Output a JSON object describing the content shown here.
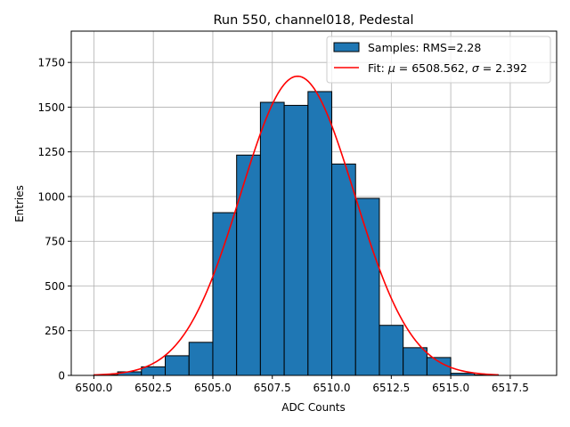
{
  "chart_data": {
    "type": "histogram",
    "title": "Run 550, channel018, Pedestal",
    "xlabel": "ADC Counts",
    "ylabel": "Entries",
    "xlim": [
      6499.05,
      6519.45
    ],
    "ylim": [
      0,
      1925
    ],
    "x_ticks": [
      6500.0,
      6502.5,
      6505.0,
      6507.5,
      6510.0,
      6512.5,
      6515.0,
      6517.5
    ],
    "x_tick_labels": [
      "6500.0",
      "6502.5",
      "6505.0",
      "6507.5",
      "6510.0",
      "6512.5",
      "6515.0",
      "6517.5"
    ],
    "y_ticks": [
      0,
      250,
      500,
      750,
      1000,
      1250,
      1500,
      1750
    ],
    "y_tick_labels": [
      "0",
      "250",
      "500",
      "750",
      "1000",
      "1250",
      "1500",
      "1750"
    ],
    "grid": true,
    "legend_position": "top-right",
    "histogram": {
      "name": "Samples: RMS=2.28",
      "color": "#1f77b4",
      "edge_color": "#000000",
      "bin_edges": [
        6500,
        6501,
        6502,
        6503,
        6504,
        6505,
        6506,
        6507,
        6508,
        6509,
        6510,
        6511,
        6512,
        6513,
        6514,
        6515,
        6516,
        6517,
        6518,
        6519
      ],
      "counts": [
        3,
        20,
        48,
        110,
        185,
        910,
        1232,
        1527,
        1510,
        1587,
        1182,
        990,
        280,
        155,
        100,
        12,
        3,
        0,
        0
      ]
    },
    "fit": {
      "name": "Fit: μ = 6508.562, σ = 2.392",
      "color": "#ff0000",
      "mu": 6508.562,
      "sigma": 2.392,
      "peak": 1673,
      "x_range": [
        6500,
        6517
      ]
    }
  },
  "legend": {
    "histogram_label": "Samples: RMS=2.28",
    "fit_label_prefix": "Fit: ",
    "fit_mu_label": "μ",
    "fit_mu_value": " = 6508.562, ",
    "fit_sigma_label": "σ",
    "fit_sigma_value": " = 2.392"
  }
}
